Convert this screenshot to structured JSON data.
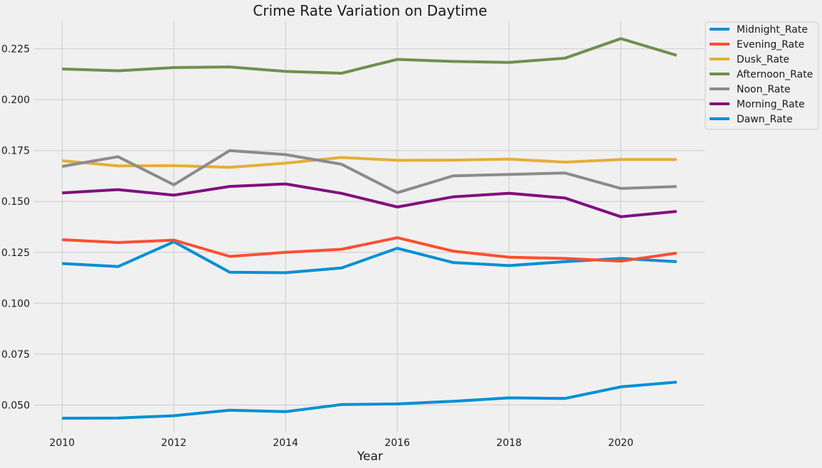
{
  "chart_data": {
    "type": "line",
    "title": "Crime Rate Variation on Daytime",
    "xlabel": "Year",
    "ylabel": "",
    "x": [
      2010,
      2011,
      2012,
      2013,
      2014,
      2015,
      2016,
      2017,
      2018,
      2019,
      2020,
      2021
    ],
    "xlim": [
      2009.5,
      2021.5
    ],
    "ylim": [
      0.0365,
      0.2385
    ],
    "xticks": [
      2010,
      2012,
      2014,
      2016,
      2018,
      2020
    ],
    "yticks": [
      0.05,
      0.075,
      0.1,
      0.125,
      0.15,
      0.175,
      0.2,
      0.225
    ],
    "ytick_labels": [
      "0.050",
      "0.075",
      "0.100",
      "0.125",
      "0.150",
      "0.175",
      "0.200",
      "0.225"
    ],
    "grid": true,
    "legend_position": "outside-top-right",
    "series": [
      {
        "name": "Midnight_Rate",
        "color": "#008fd5",
        "values": [
          0.1195,
          0.118,
          0.1302,
          0.1152,
          0.115,
          0.1173,
          0.127,
          0.12,
          0.1185,
          0.1204,
          0.122,
          0.1204
        ]
      },
      {
        "name": "Evening_Rate",
        "color": "#fc4f30",
        "values": [
          0.1312,
          0.1298,
          0.131,
          0.123,
          0.125,
          0.1265,
          0.1322,
          0.1256,
          0.1226,
          0.122,
          0.1207,
          0.1246
        ]
      },
      {
        "name": "Dusk_Rate",
        "color": "#e5ae38",
        "values": [
          0.17,
          0.1675,
          0.1676,
          0.1668,
          0.1688,
          0.1716,
          0.1702,
          0.1703,
          0.1708,
          0.1693,
          0.1706,
          0.1706
        ]
      },
      {
        "name": "Afternoon_Rate",
        "color": "#6d904f",
        "values": [
          0.2151,
          0.2142,
          0.2158,
          0.2161,
          0.2139,
          0.213,
          0.2198,
          0.2188,
          0.2183,
          0.2204,
          0.23,
          0.2218
        ]
      },
      {
        "name": "Noon_Rate",
        "color": "#8b8b8b",
        "values": [
          0.1672,
          0.172,
          0.1582,
          0.175,
          0.173,
          0.1683,
          0.1543,
          0.1626,
          0.1633,
          0.164,
          0.1564,
          0.1573
        ]
      },
      {
        "name": "Morning_Rate",
        "color": "#810f7c",
        "values": [
          0.1542,
          0.1558,
          0.1531,
          0.1574,
          0.1586,
          0.154,
          0.1473,
          0.1523,
          0.154,
          0.1517,
          0.1425,
          0.1451
        ]
      },
      {
        "name": "Dawn_Rate",
        "color": "#008fd5",
        "values": [
          0.0435,
          0.0436,
          0.0447,
          0.0474,
          0.0467,
          0.0502,
          0.0505,
          0.0518,
          0.0535,
          0.0532,
          0.0589,
          0.0612
        ]
      }
    ]
  }
}
